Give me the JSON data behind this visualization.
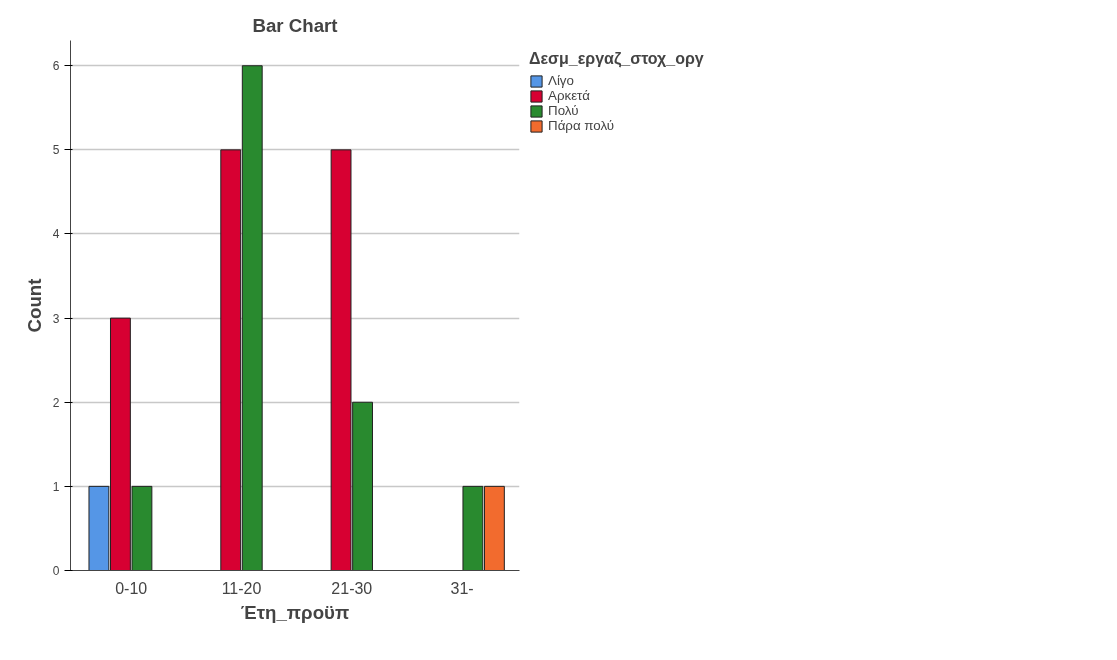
{
  "chart_data": {
    "type": "bar",
    "title": "Bar Chart",
    "xlabel": "Έτη_προϋπ",
    "ylabel": "Count",
    "legend_title": "Δεσμ_εργαζ_στοχ_οργ",
    "categories": [
      "0-10",
      "11-20",
      "21-30",
      "31-"
    ],
    "series": [
      {
        "name": "Λίγο",
        "color": "#5596e6",
        "values": [
          1,
          null,
          null,
          null
        ]
      },
      {
        "name": "Αρκετά",
        "color": "#d70032",
        "values": [
          3,
          5,
          5,
          null
        ]
      },
      {
        "name": "Πολύ",
        "color": "#298a2f",
        "values": [
          1,
          6,
          2,
          1
        ]
      },
      {
        "name": "Πάρα πολύ",
        "color": "#f26b2e",
        "values": [
          null,
          null,
          null,
          1
        ]
      }
    ],
    "ylim": [
      0,
      6.3
    ],
    "yticks": [
      0,
      1,
      2,
      3,
      4,
      5,
      6
    ],
    "grid": "y",
    "legend": "top right"
  }
}
